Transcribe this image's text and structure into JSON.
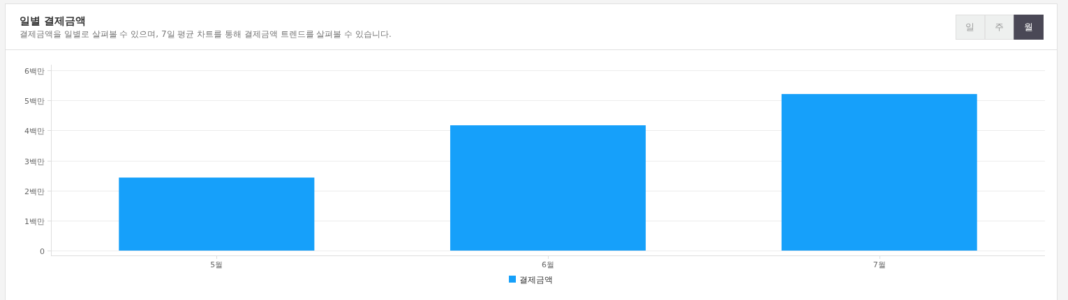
{
  "chart_data": {
    "type": "bar",
    "title": "일별 결제금액",
    "subtitle": "결제금액을 일별로 살펴볼 수 있으며, 7일 평균 차트를 통해 결제금액 트렌드를 살펴볼 수 있습니다.",
    "categories": [
      "5월",
      "6월",
      "7월"
    ],
    "series": [
      {
        "name": "결제금액",
        "color": "#16a0fa",
        "values": [
          2.43,
          4.17,
          5.21
        ]
      }
    ],
    "ylim": [
      0,
      6
    ],
    "yticks": [
      0,
      {
        "value": 1,
        "label": "1백만"
      },
      {
        "value": 2,
        "label": "2백만"
      },
      {
        "value": 3,
        "label": "3백만"
      },
      {
        "value": 4,
        "label": "4백만"
      },
      {
        "value": 5,
        "label": "5백만"
      },
      {
        "value": 6,
        "label": "6백만"
      }
    ],
    "grid": "y",
    "legend": "bottom",
    "annotations": [
      "일",
      "주",
      "월"
    ]
  }
}
